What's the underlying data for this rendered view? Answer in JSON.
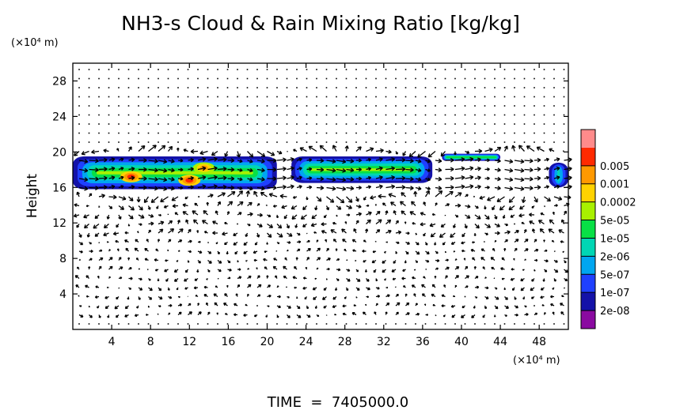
{
  "chart_data": {
    "type": "heatmap",
    "title": "NH3-s Cloud & Rain Mixing Ratio [kg/kg]",
    "xlabel": "",
    "ylabel": "Height",
    "x_unit_label": "(×10⁴ m)",
    "y_unit_label": "(×10⁴ m)",
    "xlim": [
      0,
      51
    ],
    "ylim": [
      0,
      30
    ],
    "x_ticks": [
      4,
      8,
      12,
      16,
      20,
      24,
      28,
      32,
      36,
      40,
      44,
      48
    ],
    "y_ticks": [
      4,
      8,
      12,
      16,
      20,
      24,
      28
    ],
    "footer": "TIME  =  7405000.0",
    "colorbar": {
      "levels": [
        "2e-08",
        "1e-07",
        "5e-07",
        "2e-06",
        "1e-05",
        "5e-05",
        "0.0002",
        "0.001",
        "0.005"
      ],
      "colors": [
        "#8a0aa0",
        "#1412a8",
        "#1f40ff",
        "#00a6f0",
        "#00d6b4",
        "#08e046",
        "#a8f000",
        "#ffd200",
        "#ff9900",
        "#ff2a00",
        "#ff8b8b"
      ]
    },
    "cloud_regions": [
      {
        "name": "main-cloud-west",
        "x": [
          0,
          21
        ],
        "y": [
          15.8,
          19.5
        ]
      },
      {
        "name": "main-cloud-east",
        "x": [
          22.5,
          37
        ],
        "y": [
          16.5,
          19.5
        ]
      },
      {
        "name": "cloud-wisp-42",
        "x": [
          38,
          44
        ],
        "y": [
          19,
          19.8
        ]
      },
      {
        "name": "cloud-edge-50",
        "x": [
          49,
          51
        ],
        "y": [
          16,
          18.8
        ]
      }
    ],
    "peak_regions": [
      {
        "x": 6,
        "y": 17.2,
        "level": "0.001"
      },
      {
        "x": 12,
        "y": 16.8,
        "level": "0.001"
      },
      {
        "x": 13.5,
        "y": 18.2,
        "level": "0.0002"
      }
    ]
  }
}
